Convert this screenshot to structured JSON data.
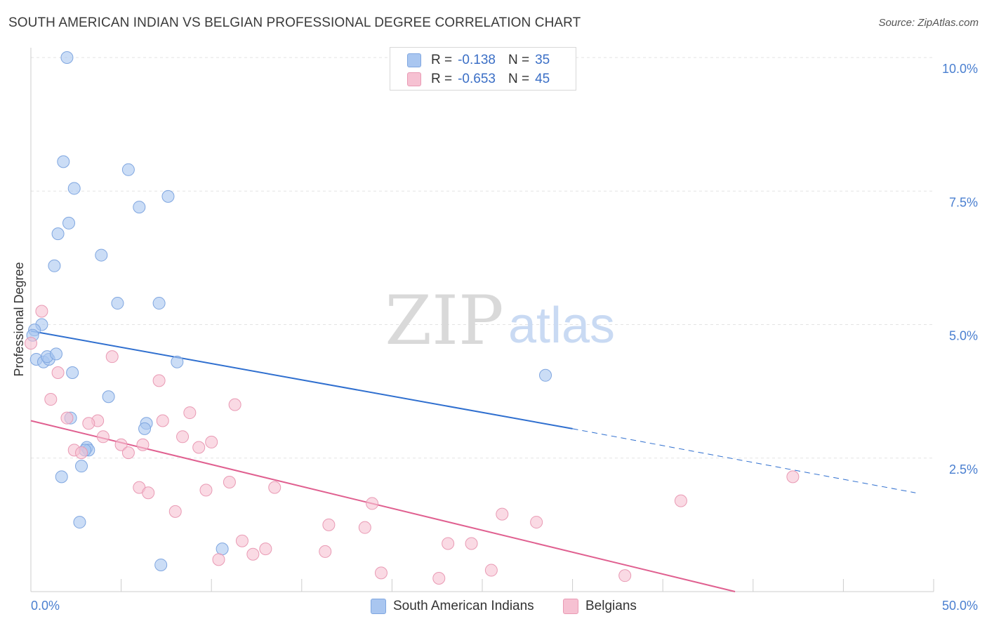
{
  "title": "SOUTH AMERICAN INDIAN VS BELGIAN PROFESSIONAL DEGREE CORRELATION CHART",
  "source": "Source: ZipAtlas.com",
  "watermark": {
    "zip": "ZIP",
    "atlas": "atlas"
  },
  "legend": {
    "rows": [
      {
        "r_label": "R =",
        "r_value": "-0.138",
        "n_label": "N =",
        "n_value": "35",
        "color": "#a9c6f0",
        "border": "#7fa6e0"
      },
      {
        "r_label": "R =",
        "r_value": "-0.653",
        "n_label": "N =",
        "n_value": "45",
        "color": "#f6c1d2",
        "border": "#e99ab4"
      }
    ]
  },
  "bottom_legend": {
    "series1": "South American Indians",
    "series2": "Belgians"
  },
  "chart_data": {
    "type": "scatter",
    "title": "SOUTH AMERICAN INDIAN VS BELGIAN PROFESSIONAL DEGREE CORRELATION CHART",
    "xlabel": "",
    "ylabel": "Professional Degree",
    "xlim": [
      0,
      50
    ],
    "ylim": [
      0,
      10
    ],
    "x_tick_labels": [
      "0.0%",
      "50.0%"
    ],
    "y_ticks": [
      2.5,
      5.0,
      7.5,
      10.0
    ],
    "y_tick_labels": [
      "2.5%",
      "5.0%",
      "7.5%",
      "10.0%"
    ],
    "grid": true,
    "series": [
      {
        "name": "South American Indians",
        "color": "#a9c6f0",
        "stroke": "#7fa6e0",
        "line_color": "#2f6fcf",
        "trend": {
          "x0": 0,
          "y0": 4.88,
          "x1": 30,
          "y1": 3.05,
          "dash_to_x": 49,
          "dash_to_y": 1.85
        },
        "points": [
          [
            2.0,
            10.0
          ],
          [
            1.8,
            8.05
          ],
          [
            5.4,
            7.9
          ],
          [
            2.4,
            7.55
          ],
          [
            7.6,
            7.4
          ],
          [
            6.0,
            7.2
          ],
          [
            2.1,
            6.9
          ],
          [
            1.5,
            6.7
          ],
          [
            3.9,
            6.3
          ],
          [
            1.3,
            6.1
          ],
          [
            4.8,
            5.4
          ],
          [
            7.1,
            5.4
          ],
          [
            0.6,
            5.0
          ],
          [
            0.2,
            4.9
          ],
          [
            0.1,
            4.8
          ],
          [
            0.3,
            4.35
          ],
          [
            0.7,
            4.3
          ],
          [
            1.0,
            4.35
          ],
          [
            0.9,
            4.4
          ],
          [
            1.4,
            4.45
          ],
          [
            8.1,
            4.3
          ],
          [
            2.3,
            4.1
          ],
          [
            28.5,
            4.05
          ],
          [
            4.3,
            3.65
          ],
          [
            2.2,
            3.25
          ],
          [
            6.4,
            3.15
          ],
          [
            6.3,
            3.05
          ],
          [
            3.1,
            2.7
          ],
          [
            3.2,
            2.65
          ],
          [
            3.0,
            2.65
          ],
          [
            2.8,
            2.35
          ],
          [
            1.7,
            2.15
          ],
          [
            2.7,
            1.3
          ],
          [
            10.6,
            0.8
          ],
          [
            7.2,
            0.5
          ]
        ]
      },
      {
        "name": "Belgians",
        "color": "#f6c1d2",
        "stroke": "#e99ab4",
        "line_color": "#e06090",
        "trend": {
          "x0": 0,
          "y0": 3.2,
          "x1": 39,
          "y1": 0.0
        },
        "points": [
          [
            0.0,
            4.65
          ],
          [
            0.6,
            5.25
          ],
          [
            4.5,
            4.4
          ],
          [
            1.5,
            4.1
          ],
          [
            7.1,
            3.95
          ],
          [
            1.1,
            3.6
          ],
          [
            11.3,
            3.5
          ],
          [
            8.8,
            3.35
          ],
          [
            2.0,
            3.25
          ],
          [
            3.7,
            3.2
          ],
          [
            7.3,
            3.2
          ],
          [
            3.2,
            3.15
          ],
          [
            4.0,
            2.9
          ],
          [
            8.4,
            2.9
          ],
          [
            10.0,
            2.8
          ],
          [
            5.0,
            2.75
          ],
          [
            6.2,
            2.75
          ],
          [
            9.3,
            2.7
          ],
          [
            2.4,
            2.65
          ],
          [
            2.8,
            2.6
          ],
          [
            5.4,
            2.6
          ],
          [
            11.0,
            2.05
          ],
          [
            13.5,
            1.95
          ],
          [
            6.0,
            1.95
          ],
          [
            9.7,
            1.9
          ],
          [
            6.5,
            1.85
          ],
          [
            42.2,
            2.15
          ],
          [
            36.0,
            1.7
          ],
          [
            18.9,
            1.65
          ],
          [
            8.0,
            1.5
          ],
          [
            26.1,
            1.45
          ],
          [
            28.0,
            1.3
          ],
          [
            16.5,
            1.25
          ],
          [
            18.5,
            1.2
          ],
          [
            11.7,
            0.95
          ],
          [
            23.1,
            0.9
          ],
          [
            24.4,
            0.9
          ],
          [
            13.0,
            0.8
          ],
          [
            16.3,
            0.75
          ],
          [
            12.3,
            0.7
          ],
          [
            10.4,
            0.6
          ],
          [
            25.5,
            0.4
          ],
          [
            19.4,
            0.35
          ],
          [
            32.9,
            0.3
          ],
          [
            22.6,
            0.25
          ]
        ]
      }
    ]
  }
}
